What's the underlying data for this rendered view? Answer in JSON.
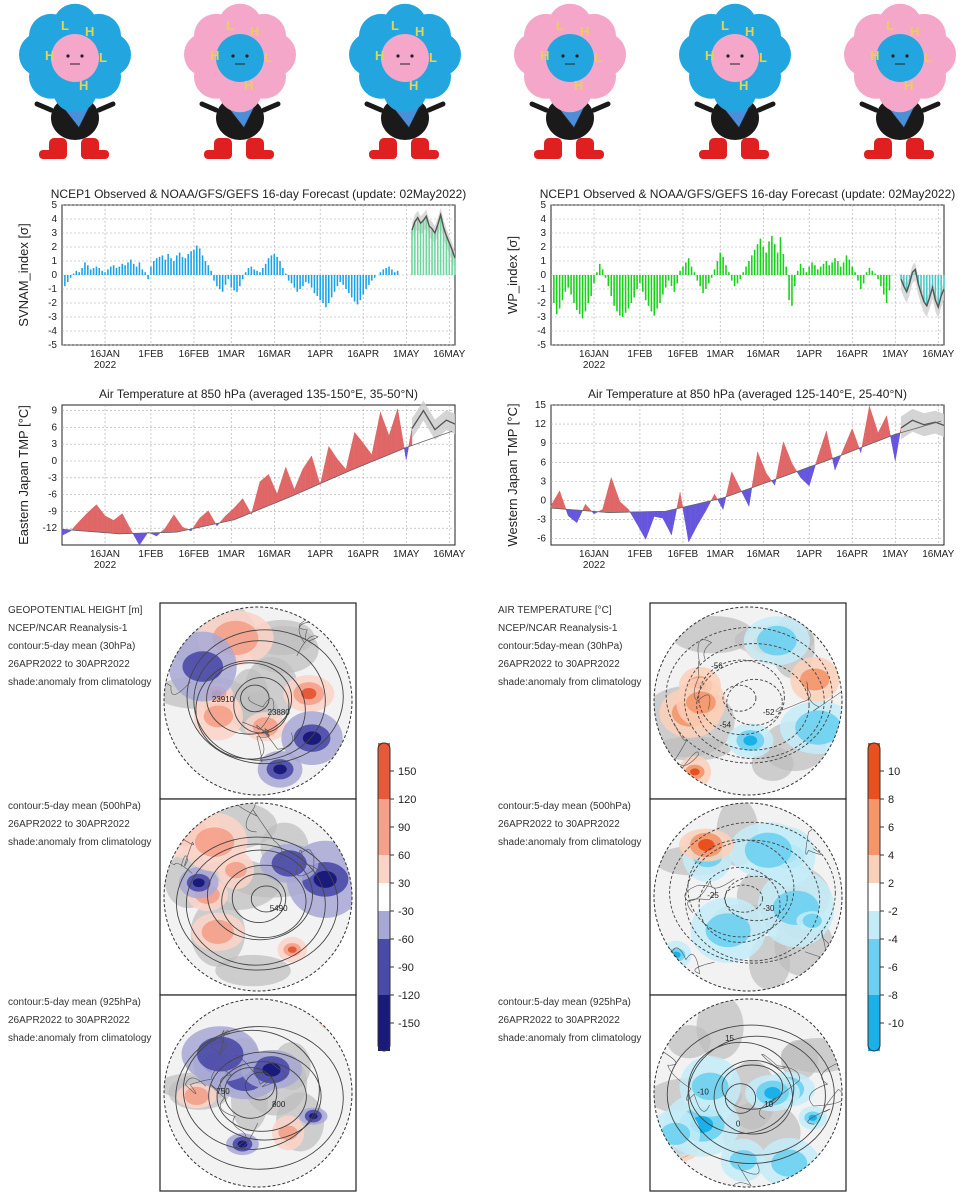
{
  "mascots": {
    "count": 6
  },
  "charts": {
    "svnam": {
      "title": "NCEP1 Observed & NOAA/GFS/GEFS 16-day Forecast (update: 02May2022)",
      "ylabel": "SVNAM_index [σ]",
      "color": "#1aa3e8",
      "forecast_color": "#6fd6a0"
    },
    "wp": {
      "title": "NCEP1 Observed & NOAA/GFS/GEFS 16-day Forecast (update: 02May2022)",
      "ylabel": "WP_index [σ]",
      "color": "#19d11a",
      "forecast_color": "#49c8c8"
    },
    "east": {
      "title": "Air Temperature at 850 hPa (averaged 135-150°E, 35-50°N)",
      "ylabel": "Eastern Japan TMP [°C]",
      "warm": "#e06666",
      "cold": "#6655dd"
    },
    "west": {
      "title": "Air Temperature at 850 hPa (averaged 125-140°E, 25-40°N)",
      "ylabel": "Western Japan TMP [°C]",
      "warm": "#e06666",
      "cold": "#6655dd"
    }
  },
  "maps": {
    "gph": {
      "header": [
        "GEOPOTENTIAL HEIGHT [m]",
        "NCEP/NCAR Reanalysis-1",
        "contour:5-day mean (30hPa)",
        "26APR2022 to 30APR2022",
        "shade:anomaly from climatology"
      ],
      "mid": [
        "contour:5-day mean (500hPa)",
        "26APR2022 to 30APR2022",
        "shade:anomaly from climatology"
      ],
      "low": [
        "contour:5-day mean (925hPa)",
        "26APR2022 to 30APR2022",
        "shade:anomaly from climatology"
      ],
      "contour_labels_top": [
        "23880",
        "23910"
      ],
      "contour_labels_mid": [
        "5490"
      ],
      "contour_labels_low": [
        "800",
        "750"
      ],
      "colorbar": [
        "150",
        "120",
        "90",
        "60",
        "30",
        "-30",
        "-60",
        "-90",
        "-120",
        "-150"
      ]
    },
    "temp": {
      "header": [
        "AIR TEMPERATURE [°C]",
        "NCEP/NCAR Reanalysis-1",
        "contour:5day-mean (30hPa)",
        "26APR2022 to 30APR2022",
        "shade:anomaly from climatology"
      ],
      "mid": [
        "contour:5-day mean (500hPa)",
        "26APR2022 to 30APR2022",
        "shade:anomaly from climatology"
      ],
      "low": [
        "contour:5-day mean (925hPa)",
        "26APR2022 to 30APR2022",
        "shade:anomaly from climatology"
      ],
      "contour_labels_top": [
        "-52",
        "-54",
        "-56"
      ],
      "contour_labels_mid": [
        "-30",
        "-25"
      ],
      "contour_labels_low": [
        "10",
        "0",
        "-10",
        "15"
      ],
      "colorbar": [
        "10",
        "8",
        "6",
        "4",
        "2",
        "-2",
        "-4",
        "-6",
        "-8",
        "-10"
      ]
    }
  },
  "chart_data": [
    {
      "type": "bar",
      "id": "svnam",
      "title": "NCEP1 Observed & NOAA/GFS/GEFS 16-day Forecast (update: 02May2022)",
      "ylabel": "SVNAM_index [σ]",
      "ylim": [
        -5,
        5
      ],
      "yticks": [
        5,
        4,
        3,
        2,
        1,
        0,
        -1,
        -2,
        -3,
        -4,
        -5
      ],
      "xlabels": [
        "16JAN\n2022",
        "1FEB",
        "16FEB",
        "1MAR",
        "16MAR",
        "1APR",
        "16APR",
        "1MAY",
        "16MAY"
      ],
      "xlabel_days": [
        15,
        31,
        46,
        59,
        74,
        90,
        105,
        120,
        135
      ],
      "xlim_days": [
        0,
        137
      ],
      "observed_end_day": 122,
      "grid": true,
      "values": [
        -0.8,
        -0.5,
        -0.2,
        0.1,
        0.3,
        0.2,
        0.5,
        0.9,
        0.7,
        0.4,
        0.5,
        0.6,
        0.5,
        0.3,
        0.2,
        0.4,
        0.6,
        0.7,
        0.5,
        0.6,
        0.8,
        0.7,
        0.9,
        1.1,
        0.8,
        0.6,
        0.9,
        0.4,
        0.2,
        -0.3,
        0.6,
        1.0,
        1.2,
        1.3,
        1.4,
        1.1,
        1.5,
        1.2,
        1.0,
        1.4,
        1.6,
        1.3,
        1.2,
        1.5,
        1.7,
        1.8,
        2.1,
        1.9,
        1.4,
        1.0,
        0.7,
        0.3,
        -0.4,
        -0.8,
        -1.0,
        -1.2,
        -0.7,
        -0.3,
        -0.9,
        -1.1,
        -1.2,
        -0.8,
        -0.3,
        0.2,
        0.5,
        0.6,
        0.4,
        0.3,
        0.2,
        0.5,
        0.8,
        1.2,
        1.4,
        1.5,
        1.3,
        1.0,
        0.5,
        0.1,
        -0.4,
        -0.6,
        -0.9,
        -1.2,
        -1.0,
        -0.8,
        -0.5,
        -0.6,
        -0.9,
        -1.3,
        -1.5,
        -1.8,
        -2.0,
        -2.3,
        -2.0,
        -1.6,
        -1.2,
        -0.8,
        -0.5,
        -0.7,
        -1.0,
        -1.3,
        -1.6,
        -1.9,
        -2.1,
        -1.8,
        -1.4,
        -1.0,
        -0.7,
        -0.4,
        -0.2,
        0.0,
        0.2,
        0.4,
        0.5,
        0.6,
        0.4,
        0.2,
        0.3
      ],
      "forecast": [
        3.2,
        3.8,
        4.1,
        3.7,
        3.9,
        4.2,
        3.5,
        3.3,
        3.0,
        3.6,
        4.3,
        3.4,
        2.8,
        2.3,
        1.8,
        1.2
      ]
    },
    {
      "type": "bar",
      "id": "wp",
      "title": "NCEP1 Observed & NOAA/GFS/GEFS 16-day Forecast (update: 02May2022)",
      "ylabel": "WP_index [σ]",
      "ylim": [
        -5,
        5
      ],
      "yticks": [
        5,
        4,
        3,
        2,
        1,
        0,
        -1,
        -2,
        -3,
        -4,
        -5
      ],
      "xlabels": [
        "16JAN\n2022",
        "1FEB",
        "16FEB",
        "1MAR",
        "16MAR",
        "1APR",
        "16APR",
        "1MAY",
        "16MAY"
      ],
      "xlabel_days": [
        15,
        31,
        46,
        59,
        74,
        90,
        105,
        120,
        135
      ],
      "xlim_days": [
        0,
        137
      ],
      "observed_end_day": 122,
      "grid": true,
      "values": [
        -2.0,
        -2.8,
        -2.4,
        -1.8,
        -1.2,
        -0.9,
        -1.4,
        -2.0,
        -2.5,
        -2.8,
        -3.1,
        -2.6,
        -2.0,
        -1.5,
        -0.6,
        0.2,
        0.8,
        0.4,
        -0.2,
        -0.8,
        -1.5,
        -2.2,
        -2.6,
        -2.9,
        -3.0,
        -2.7,
        -2.4,
        -2.0,
        -1.6,
        -1.0,
        -0.6,
        -1.2,
        -1.8,
        -2.2,
        -2.6,
        -2.9,
        -2.4,
        -2.0,
        -1.4,
        -0.9,
        -0.4,
        -0.8,
        -1.2,
        -0.6,
        0.3,
        0.6,
        0.9,
        1.2,
        0.6,
        0.2,
        -0.4,
        -0.8,
        -1.3,
        -1.0,
        -0.6,
        -0.2,
        0.4,
        1.0,
        1.6,
        1.3,
        0.7,
        0.2,
        -0.4,
        -0.8,
        -0.6,
        -0.3,
        0.2,
        0.6,
        1.0,
        1.4,
        1.8,
        2.2,
        2.6,
        2.0,
        1.6,
        2.4,
        2.8,
        2.2,
        1.6,
        2.7,
        1.5,
        0.6,
        -1.8,
        -2.2,
        -0.8,
        0.3,
        0.8,
        0.5,
        0.2,
        0.6,
        0.9,
        0.7,
        0.4,
        0.6,
        0.8,
        1.0,
        0.7,
        0.9,
        1.2,
        1.0,
        0.6,
        0.9,
        1.4,
        1.1,
        0.6,
        0.2,
        -0.4,
        -1.0,
        -0.6,
        0.2,
        0.5,
        0.3,
        0.1,
        -0.3,
        -0.8,
        -1.4,
        -2.0,
        -1.1
      ],
      "forecast": [
        -0.3,
        -0.8,
        -1.2,
        -0.6,
        0.2,
        0.4,
        -0.6,
        -1.3,
        -1.9,
        -2.2,
        -1.6,
        -0.9,
        -1.8,
        -2.3,
        -1.5,
        -1.0
      ]
    },
    {
      "type": "area",
      "id": "east",
      "title": "Air Temperature at 850 hPa (averaged 135-150°E, 35-50°N)",
      "ylabel": "Eastern Japan TMP [°C]",
      "ylim": [
        -15,
        10
      ],
      "yticks": [
        9,
        6,
        3,
        0,
        -3,
        -6,
        -9,
        -12
      ],
      "xlabels": [
        "16JAN\n2022",
        "1FEB",
        "16FEB",
        "1MAR",
        "16MAR",
        "1APR",
        "16APR",
        "1MAY",
        "16MAY"
      ],
      "xlabel_days": [
        15,
        31,
        46,
        59,
        74,
        90,
        105,
        120,
        135
      ],
      "xlim_days": [
        0,
        137
      ],
      "observed_end_day": 122,
      "grid": true,
      "climatology_days": [
        0,
        20,
        40,
        60,
        80,
        100,
        120,
        137
      ],
      "climatology": [
        -12.2,
        -13.0,
        -12.7,
        -10.5,
        -6.3,
        -1.8,
        2.4,
        5.5
      ],
      "actual_days": [
        0,
        3,
        6,
        9,
        12,
        15,
        18,
        21,
        24,
        27,
        30,
        33,
        36,
        39,
        42,
        45,
        48,
        51,
        54,
        57,
        60,
        63,
        66,
        69,
        72,
        75,
        78,
        81,
        84,
        87,
        90,
        93,
        96,
        99,
        102,
        105,
        108,
        111,
        114,
        117,
        120,
        122
      ],
      "actual": [
        -13.3,
        -12.5,
        -10.8,
        -9.2,
        -7.8,
        -9.8,
        -10.6,
        -9.4,
        -12.3,
        -15.0,
        -12.7,
        -13.4,
        -12.0,
        -9.6,
        -11.8,
        -12.5,
        -10.2,
        -8.9,
        -11.6,
        -9.8,
        -8.4,
        -6.7,
        -9.5,
        -3.7,
        -2.4,
        -5.9,
        -1.1,
        -5.1,
        -1.4,
        0.9,
        -4.3,
        2.6,
        0.3,
        -1.5,
        5.1,
        3.2,
        1.1,
        8.7,
        4.5,
        9.3,
        0.2,
        5.8
      ],
      "forecast_days": [
        122,
        126,
        130,
        134,
        137
      ],
      "forecast": [
        5.8,
        9.0,
        5.6,
        7.3,
        6.6
      ]
    },
    {
      "type": "area",
      "id": "west",
      "title": "Air Temperature at 850 hPa (averaged 125-140°E, 25-40°N)",
      "ylabel": "Western Japan TMP [°C]",
      "ylim": [
        -7,
        15
      ],
      "yticks": [
        15,
        12,
        9,
        6,
        3,
        0,
        -3,
        -6
      ],
      "xlabels": [
        "16JAN\n2022",
        "1FEB",
        "16FEB",
        "1MAR",
        "16MAR",
        "1APR",
        "16APR",
        "1MAY",
        "16MAY"
      ],
      "xlabel_days": [
        15,
        31,
        46,
        59,
        74,
        90,
        105,
        120,
        135
      ],
      "xlim_days": [
        0,
        137
      ],
      "observed_end_day": 122,
      "grid": true,
      "climatology_days": [
        0,
        20,
        40,
        60,
        80,
        100,
        120,
        137
      ],
      "climatology": [
        -1.2,
        -1.9,
        -1.7,
        0.4,
        3.6,
        6.9,
        10.4,
        12.6
      ],
      "actual_days": [
        0,
        3,
        6,
        9,
        12,
        15,
        18,
        21,
        24,
        27,
        30,
        33,
        36,
        39,
        42,
        45,
        48,
        51,
        54,
        57,
        60,
        63,
        66,
        69,
        72,
        75,
        78,
        81,
        84,
        87,
        90,
        93,
        96,
        99,
        102,
        105,
        108,
        111,
        114,
        117,
        120,
        122
      ],
      "actual": [
        -0.8,
        1.5,
        -2.4,
        -3.5,
        -0.6,
        -2.1,
        -1.4,
        3.6,
        -0.2,
        -1.4,
        -3.7,
        -6.1,
        -2.5,
        -2.8,
        -5.4,
        1.3,
        -6.5,
        -3.9,
        -1.6,
        1.0,
        -1.4,
        4.5,
        1.8,
        -0.9,
        7.6,
        4.3,
        2.4,
        9.2,
        5.8,
        3.6,
        2.3,
        6.8,
        10.9,
        4.8,
        8.1,
        11.3,
        7.5,
        14.8,
        10.6,
        13.3,
        6.2,
        11.4
      ],
      "forecast_days": [
        122,
        126,
        130,
        134,
        137
      ],
      "forecast": [
        11.4,
        12.6,
        11.9,
        12.3,
        11.8
      ]
    }
  ]
}
